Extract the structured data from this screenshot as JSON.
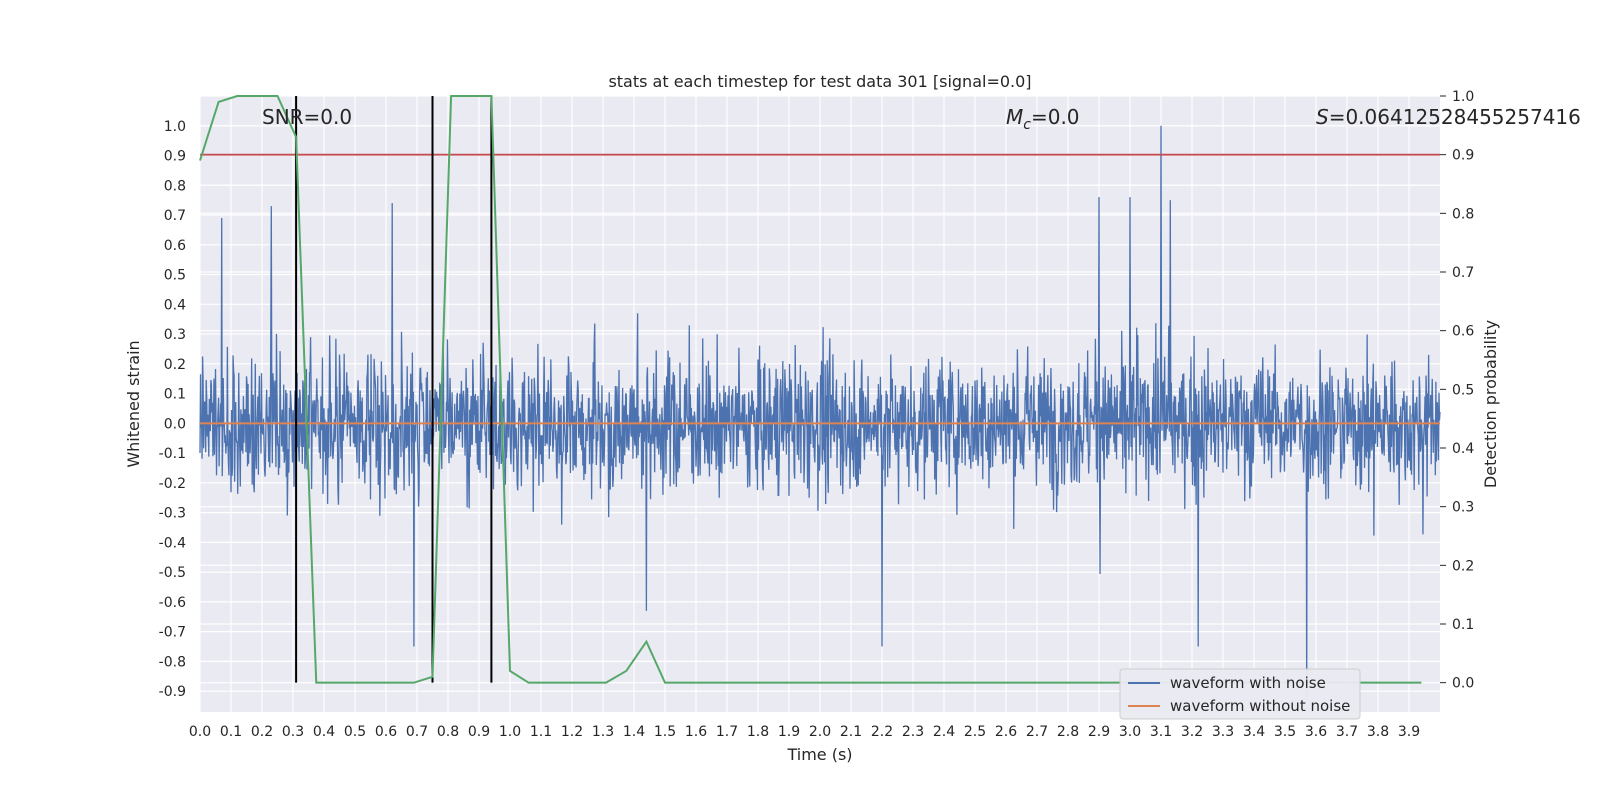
{
  "chart_data": {
    "type": "line",
    "title": "stats at each timestep for test data 301 [signal=0.0]",
    "xlabel": "Time (s)",
    "ylabel": "Whitened strain",
    "y2label": "Detection probability",
    "xlim": [
      0.0,
      4.0
    ],
    "ylim": [
      -0.97,
      1.1
    ],
    "y2lim": [
      -0.05,
      1.0
    ],
    "x_ticks": [
      "0.0",
      "0.1",
      "0.2",
      "0.3",
      "0.4",
      "0.5",
      "0.6",
      "0.7",
      "0.8",
      "0.9",
      "1.0",
      "1.1",
      "1.2",
      "1.3",
      "1.4",
      "1.5",
      "1.6",
      "1.7",
      "1.8",
      "1.9",
      "2.0",
      "2.1",
      "2.2",
      "2.3",
      "2.4",
      "2.5",
      "2.6",
      "2.7",
      "2.8",
      "2.9",
      "3.0",
      "3.1",
      "3.2",
      "3.3",
      "3.4",
      "3.5",
      "3.6",
      "3.7",
      "3.8",
      "3.9"
    ],
    "y_ticks": [
      "1.0",
      "0.9",
      "0.8",
      "0.7",
      "0.6",
      "0.5",
      "0.4",
      "0.3",
      "0.2",
      "0.1",
      "0.0",
      "-0.1",
      "-0.2",
      "-0.3",
      "-0.4",
      "-0.5",
      "-0.6",
      "-0.7",
      "-0.8",
      "-0.9"
    ],
    "y2_ticks": [
      "1.0",
      "0.9",
      "0.8",
      "0.7",
      "0.6",
      "0.5",
      "0.4",
      "0.3",
      "0.2",
      "0.1",
      "0.0"
    ],
    "grid": true,
    "legend_position": "bottom-right",
    "annotations": {
      "snr": "SNR=0.0",
      "mc": "=0.0",
      "s": "=0.06412528455257416"
    },
    "series": [
      {
        "name": "waveform with noise",
        "color": "#4c72b0",
        "axis": "left",
        "kind": "noise",
        "peaks": [
          [
            3.1,
            1.0
          ],
          [
            3.57,
            -0.92
          ],
          [
            3.0,
            0.76
          ],
          [
            2.9,
            0.76
          ],
          [
            0.23,
            0.73
          ],
          [
            0.07,
            0.69
          ],
          [
            0.62,
            0.74
          ],
          [
            0.69,
            -0.75
          ],
          [
            1.44,
            -0.63
          ],
          [
            2.2,
            -0.75
          ],
          [
            3.22,
            -0.75
          ],
          [
            3.13,
            0.75
          ]
        ]
      },
      {
        "name": "waveform without noise",
        "color": "#dd8452",
        "axis": "left",
        "x": [
          0.0,
          4.0
        ],
        "y": [
          0.0,
          0.0
        ]
      },
      {
        "color": "#55a868",
        "axis": "right",
        "x": [
          0.0,
          0.06,
          0.12,
          0.19,
          0.25,
          0.31,
          0.375,
          0.44,
          0.5,
          0.56,
          0.625,
          0.69,
          0.75,
          0.81,
          0.875,
          0.94,
          1.0,
          1.06,
          1.125,
          1.19,
          1.25,
          1.31,
          1.375,
          1.44,
          1.5,
          1.56,
          1.625,
          1.69,
          3.94
        ],
        "y": [
          0.89,
          0.99,
          1.0,
          1.0,
          1.0,
          0.93,
          0.0,
          0.0,
          0.0,
          0.0,
          0.0,
          0.0,
          0.01,
          1.0,
          1.0,
          1.0,
          0.02,
          0.0,
          0.0,
          0.0,
          0.0,
          0.0,
          0.02,
          0.07,
          0.0,
          0.0,
          0.0,
          0.0,
          0.0
        ]
      }
    ],
    "threshold": {
      "color": "#c44e52",
      "axis": "right",
      "value": 0.9
    },
    "vertical_markers": [
      0.31,
      0.75,
      0.94
    ]
  }
}
